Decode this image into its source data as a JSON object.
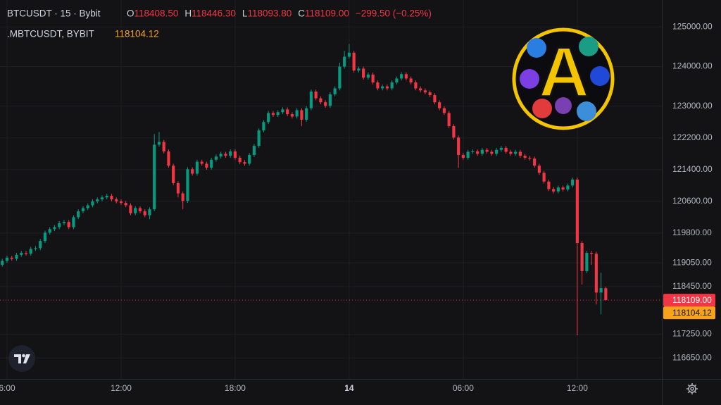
{
  "chart_data": {
    "type": "candlestick",
    "header": {
      "symbol": "BTCUSDT · 15 · Bybit",
      "ohlc": [
        "O",
        "118408.50",
        "H",
        "118446.30",
        "L",
        "118093.80",
        "C",
        "118109.00"
      ],
      "change": "−299.50 (−0.25%)"
    },
    "indicator": {
      "name": ".MBTCUSDT, BYBIT",
      "value_label": "118104.12"
    },
    "logo_text": "A",
    "up_color": "#089981",
    "down_color": "#f23645",
    "x": [
      0,
      1,
      2,
      3,
      4,
      5,
      6,
      7,
      8,
      9,
      10,
      11,
      12,
      13,
      14,
      15,
      16,
      17,
      18,
      19,
      20,
      21,
      22,
      23,
      24,
      25,
      26,
      27,
      28,
      29,
      30,
      31,
      32,
      33,
      34,
      35,
      36,
      37,
      38,
      39,
      40,
      41,
      42,
      43,
      44,
      45,
      46,
      47,
      48,
      49,
      50,
      51,
      52,
      53,
      54,
      55,
      56,
      57,
      58,
      59,
      60,
      61,
      62,
      63,
      64,
      65,
      66,
      67,
      68,
      69,
      70,
      71,
      72,
      73,
      74,
      75,
      76,
      77,
      78,
      79,
      80,
      81,
      82,
      83,
      84,
      85,
      86,
      87,
      88,
      89,
      90,
      91,
      92,
      93,
      94,
      95,
      96,
      97,
      98,
      99,
      100,
      101,
      102,
      103,
      104,
      105,
      106,
      107,
      108,
      109,
      110,
      111,
      112,
      113,
      114,
      115,
      116,
      117,
      118,
      119,
      120,
      121,
      122,
      123,
      124,
      125,
      126,
      127
    ],
    "open": [
      119000,
      119100,
      119180,
      119150,
      119250,
      119300,
      119280,
      119400,
      119420,
      119600,
      119810,
      119900,
      119950,
      120050,
      120080,
      119950,
      120200,
      120350,
      120430,
      120500,
      120600,
      120650,
      120700,
      120740,
      120650,
      120600,
      120560,
      120500,
      120300,
      120430,
      120350,
      120250,
      120400,
      122030,
      122100,
      121860,
      121500,
      121060,
      120800,
      120610,
      121410,
      121300,
      121600,
      121550,
      121450,
      121650,
      121730,
      121800,
      121750,
      121860,
      121700,
      121590,
      121550,
      121770,
      122000,
      122390,
      122600,
      122830,
      122780,
      122850,
      122920,
      122800,
      122740,
      122900,
      122660,
      122950,
      123370,
      123200,
      123100,
      123010,
      123300,
      123450,
      124000,
      124250,
      124350,
      123900,
      123950,
      123720,
      123800,
      123600,
      123450,
      123500,
      123450,
      123600,
      123700,
      123810,
      123700,
      123600,
      123450,
      123400,
      123350,
      123280,
      123100,
      122950,
      122830,
      122500,
      122210,
      121770,
      121700,
      121850,
      121860,
      121800,
      121900,
      121850,
      121800,
      121900,
      121950,
      121850,
      121800,
      121850,
      121750,
      121700,
      121680,
      121500,
      121320,
      121100,
      120910,
      120850,
      120950,
      120900,
      121000,
      121150,
      119550,
      118840,
      119300,
      119280,
      118300,
      118408.5
    ],
    "high": [
      119150,
      119230,
      119230,
      119300,
      119350,
      119350,
      119450,
      119470,
      119650,
      119860,
      119950,
      120000,
      120100,
      120130,
      120130,
      120250,
      120400,
      120480,
      120550,
      120650,
      120700,
      120750,
      120790,
      120790,
      120700,
      120650,
      120610,
      120550,
      120480,
      120480,
      120400,
      120450,
      122300,
      122350,
      122150,
      121910,
      121550,
      121110,
      120850,
      121460,
      121460,
      121650,
      121650,
      121600,
      121700,
      121780,
      121850,
      121850,
      121910,
      121910,
      121750,
      121640,
      121820,
      122050,
      122440,
      122650,
      122880,
      122880,
      122900,
      122970,
      122970,
      122850,
      122950,
      122950,
      123000,
      123420,
      123420,
      123250,
      123150,
      123350,
      123500,
      124100,
      124400,
      124570,
      124400,
      124000,
      124000,
      123850,
      123850,
      123650,
      123550,
      123550,
      123650,
      123750,
      123860,
      123860,
      123750,
      123650,
      123500,
      123450,
      123400,
      123330,
      123150,
      123000,
      122880,
      122550,
      122260,
      121820,
      121900,
      121910,
      121910,
      121950,
      121950,
      121900,
      121950,
      122000,
      122000,
      121900,
      121900,
      121900,
      121800,
      121750,
      121730,
      121550,
      121370,
      121150,
      120960,
      121000,
      121000,
      121050,
      121200,
      121200,
      119600,
      119350,
      119350,
      119330,
      118800,
      118446.3
    ],
    "low": [
      118950,
      119050,
      119100,
      119100,
      119200,
      119230,
      119230,
      119350,
      119370,
      119550,
      119760,
      119850,
      119900,
      120000,
      119900,
      119900,
      120150,
      120300,
      120380,
      120450,
      120550,
      120600,
      120650,
      120600,
      120550,
      120510,
      120450,
      120250,
      120250,
      120300,
      120200,
      120150,
      120350,
      121980,
      121810,
      121450,
      121010,
      120700,
      120400,
      120560,
      121250,
      121250,
      121500,
      121400,
      121400,
      121600,
      121680,
      121700,
      121700,
      121650,
      121540,
      121500,
      121500,
      121720,
      121950,
      122340,
      122550,
      122730,
      122730,
      122800,
      122750,
      122690,
      122690,
      122500,
      122610,
      122900,
      123150,
      123050,
      122960,
      122960,
      123250,
      123400,
      123950,
      124200,
      123850,
      123850,
      123670,
      123670,
      123550,
      123400,
      123400,
      123400,
      123400,
      123550,
      123650,
      123650,
      123550,
      123400,
      123350,
      123300,
      123230,
      123050,
      122900,
      122780,
      122450,
      122160,
      121450,
      121650,
      121650,
      121800,
      121750,
      121750,
      121800,
      121750,
      121750,
      121850,
      121800,
      121750,
      121750,
      121700,
      121650,
      121630,
      121450,
      121270,
      121050,
      120860,
      120800,
      120800,
      120850,
      120850,
      120950,
      117220,
      118500,
      118790,
      119000,
      118000,
      117750,
      118093.8
    ],
    "close": [
      119100,
      119180,
      119150,
      119250,
      119300,
      119280,
      119400,
      119420,
      119600,
      119810,
      119900,
      119950,
      120050,
      120080,
      119950,
      120200,
      120350,
      120430,
      120500,
      120600,
      120650,
      120700,
      120740,
      120650,
      120600,
      120560,
      120500,
      120300,
      120430,
      120350,
      120250,
      120400,
      122030,
      122100,
      121860,
      121500,
      121060,
      120800,
      120610,
      121410,
      121300,
      121600,
      121550,
      121450,
      121650,
      121730,
      121800,
      121750,
      121860,
      121700,
      121590,
      121550,
      121770,
      122000,
      122390,
      122600,
      122830,
      122780,
      122850,
      122920,
      122800,
      122740,
      122900,
      122660,
      122950,
      123370,
      123200,
      123100,
      123010,
      123300,
      123450,
      124000,
      124250,
      124350,
      123900,
      123950,
      123720,
      123800,
      123600,
      123450,
      123500,
      123450,
      123600,
      123700,
      123810,
      123700,
      123600,
      123450,
      123400,
      123350,
      123280,
      123100,
      122950,
      122830,
      122500,
      122210,
      121770,
      121700,
      121850,
      121860,
      121800,
      121900,
      121850,
      121800,
      121900,
      121950,
      121850,
      121800,
      121850,
      121750,
      121700,
      121680,
      121500,
      121320,
      121100,
      120910,
      120850,
      120950,
      120900,
      121000,
      121150,
      119550,
      118840,
      119300,
      119280,
      118300,
      118408.5,
      118109
    ],
    "xlim": [
      -0.48,
      138.8
    ],
    "xticks": [
      {
        "value": 1,
        "label": "6:00"
      },
      {
        "value": 25,
        "label": "12:00"
      },
      {
        "value": 49,
        "label": "18:00"
      },
      {
        "value": 73,
        "label": "14"
      },
      {
        "value": 97,
        "label": "06:00"
      },
      {
        "value": 121,
        "label": "12:00"
      }
    ],
    "ylim": [
      116120,
      125680
    ],
    "yticks": [
      {
        "value": 125000,
        "label": "125000.00"
      },
      {
        "value": 124000,
        "label": "124000.00"
      },
      {
        "value": 123000,
        "label": "123000.00"
      },
      {
        "value": 122200,
        "label": "122200.00"
      },
      {
        "value": 121400,
        "label": "121400.00"
      },
      {
        "value": 120600,
        "label": "120600.00"
      },
      {
        "value": 119800,
        "label": "119800.00"
      },
      {
        "value": 119050,
        "label": "119050.00"
      },
      {
        "value": 118450,
        "label": "118450.00"
      },
      {
        "value": 117250,
        "label": "117250.00"
      },
      {
        "value": 116650,
        "label": "116650.00"
      }
    ],
    "last_price": {
      "value": 118109,
      "label": "118109.00",
      "color": "#f23645"
    },
    "mark_price": {
      "value": 118104.12,
      "label": "118104.12",
      "color": "#f7a21b"
    },
    "grid": true
  }
}
